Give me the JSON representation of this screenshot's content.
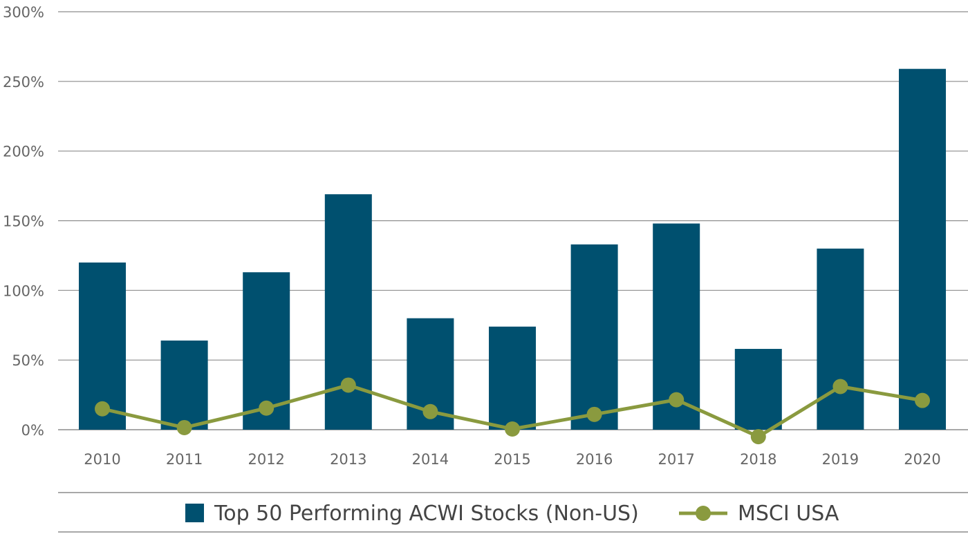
{
  "chart_data": {
    "type": "bar",
    "categories": [
      "2010",
      "2011",
      "2012",
      "2013",
      "2014",
      "2015",
      "2016",
      "2017",
      "2018",
      "2019",
      "2020"
    ],
    "series": [
      {
        "name": "Top 50 Performing ACWI Stocks (Non-US)",
        "type": "bar",
        "values": [
          120,
          64,
          113,
          169,
          80,
          74,
          133,
          148,
          58,
          130,
          259
        ]
      },
      {
        "name": "MSCI USA",
        "type": "line",
        "values": [
          15,
          1.5,
          15.5,
          32,
          13,
          0.5,
          11,
          21.5,
          -5,
          31,
          21
        ]
      }
    ],
    "y_ticks": [
      "300%",
      "250%",
      "200%",
      "150%",
      "100%",
      "50%",
      "0%"
    ],
    "ylim": [
      0,
      300
    ],
    "y_tick_values": [
      300,
      250,
      200,
      150,
      100,
      50,
      0
    ],
    "grid": true,
    "legend_position": "bottom",
    "colors": {
      "bar": "#00506f",
      "line": "#8a9a3f",
      "grid": "#8c8c8c",
      "text": "#666666"
    }
  }
}
